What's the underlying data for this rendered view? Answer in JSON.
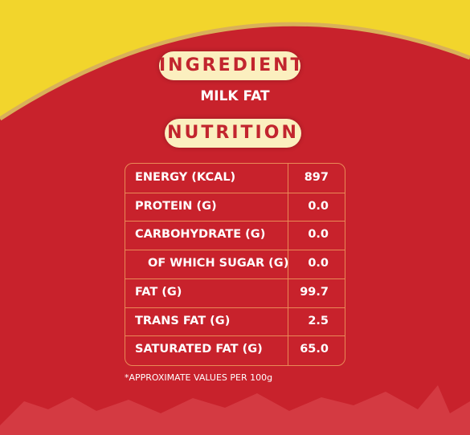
{
  "header": {
    "ingredient_label": "INGREDIENT",
    "ingredient": "MILK FAT",
    "nutrition_label": "NUTRITION"
  },
  "table": {
    "rows": [
      [
        "ENERGY (KCAL)",
        "897"
      ],
      [
        "PROTEIN (G)",
        "0.0"
      ],
      [
        "CARBOHYDRATE (G)",
        "0.0"
      ],
      [
        "OF WHICH SUGAR (G)",
        "0.0"
      ],
      [
        "FAT (G)",
        "99.7"
      ],
      [
        "TRANS FAT (G)",
        "2.5"
      ],
      [
        "SATURATED FAT (G)",
        "65.0"
      ]
    ]
  },
  "footnote": "*APPROXIMATE VALUES PER 100g"
}
